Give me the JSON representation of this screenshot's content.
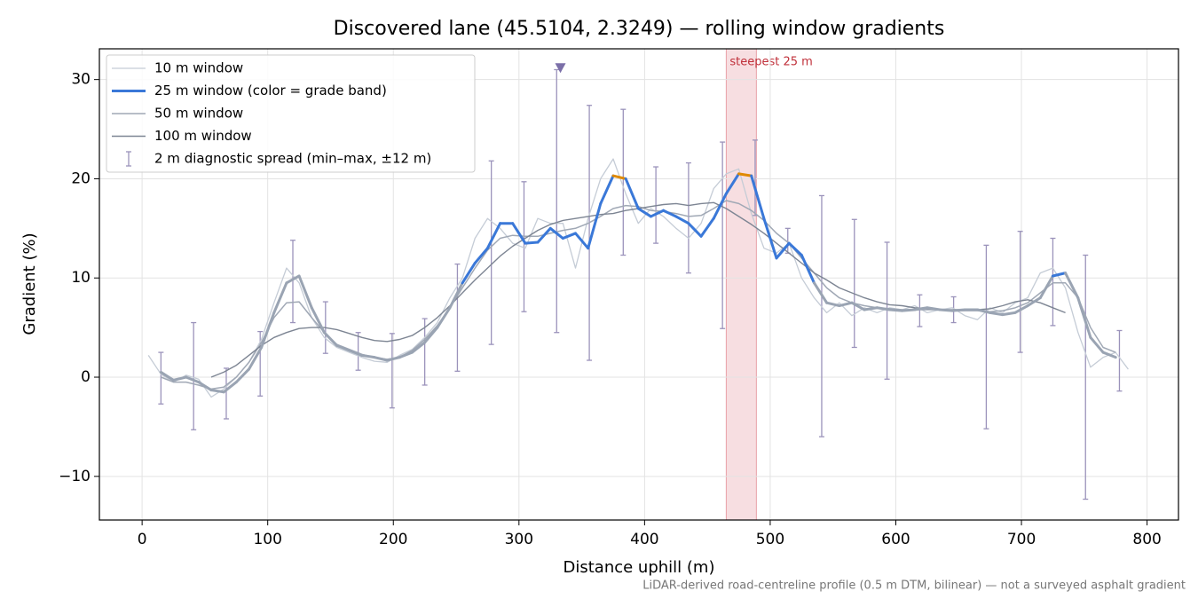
{
  "chart_data": {
    "type": "line",
    "title": "Discovered lane (45.5104, 2.3249) — rolling window gradients",
    "xlabel": "Distance uphill (m)",
    "ylabel": "Gradient (%)",
    "footnote": "LiDAR-derived road-centreline profile (0.5 m DTM, bilinear) — not a surveyed asphalt gradient",
    "xlim": [
      -34,
      825
    ],
    "ylim": [
      -14.4,
      33.1
    ],
    "xticks": [
      0,
      100,
      200,
      300,
      400,
      500,
      600,
      700,
      800
    ],
    "yticks": [
      {
        "value": -10,
        "label": "−10"
      },
      0,
      10,
      20,
      30
    ],
    "grid": true,
    "legend": "upper left",
    "x": [
      5,
      15,
      25,
      35,
      45,
      55,
      65,
      75,
      85,
      95,
      105,
      115,
      125,
      135,
      145,
      155,
      165,
      175,
      185,
      195,
      205,
      215,
      225,
      235,
      245,
      255,
      265,
      275,
      285,
      295,
      305,
      315,
      325,
      335,
      345,
      355,
      365,
      375,
      385,
      395,
      405,
      415,
      425,
      435,
      445,
      455,
      465,
      475,
      485,
      495,
      505,
      515,
      525,
      535,
      545,
      555,
      565,
      575,
      585,
      595,
      605,
      615,
      625,
      635,
      645,
      655,
      665,
      675,
      685,
      695,
      705,
      715,
      725,
      735,
      745,
      755,
      765,
      775,
      785
    ],
    "series": [
      {
        "name": "10 m window",
        "color": "#c5ccd6",
        "width": 1.3,
        "values": [
          2.2,
          0.3,
          -0.5,
          0.2,
          -0.2,
          -2,
          -1.2,
          0,
          1.5,
          3.8,
          7.5,
          11,
          9.5,
          6,
          4,
          3,
          2.5,
          2,
          1.6,
          1.5,
          2.2,
          2.8,
          4,
          5.5,
          8,
          10,
          14,
          16,
          15,
          13.5,
          13,
          16,
          15.5,
          15.5,
          11,
          16,
          20,
          22,
          18.5,
          15.5,
          17,
          16.2,
          15,
          14,
          15.5,
          19,
          20.5,
          21,
          16.5,
          13,
          12.5,
          13.5,
          10,
          8,
          6.5,
          7.5,
          6.2,
          7,
          6.5,
          7,
          6.8,
          7.2,
          6.5,
          6.8,
          7,
          6.2,
          5.8,
          7,
          6.5,
          7.5,
          8,
          10.5,
          11,
          9,
          4.5,
          1,
          2,
          2.5,
          0.8
        ]
      },
      {
        "name": "25 m window (color = grade band)",
        "color": "#9aa4b3",
        "width": 3,
        "grade_bands": [
          {
            "from": 10,
            "color": "#3a78d8"
          },
          {
            "from": 20,
            "color": "#e08a00"
          }
        ],
        "values": [
          null,
          0.5,
          -0.3,
          0,
          -0.5,
          -1.3,
          -1.5,
          -0.5,
          0.8,
          3,
          6.5,
          9.5,
          10.2,
          7,
          4.5,
          3.2,
          2.7,
          2.2,
          2,
          1.7,
          2,
          2.5,
          3.5,
          5,
          7,
          9.5,
          11.5,
          13,
          15.5,
          15.5,
          13.5,
          13.6,
          15,
          14,
          14.5,
          13,
          17.5,
          20.3,
          20,
          17,
          16.2,
          16.8,
          16.2,
          15.5,
          14.2,
          16,
          18.5,
          20.5,
          20.3,
          16,
          12,
          13.5,
          12.3,
          9.5,
          7.5,
          7.2,
          7.5,
          6.8,
          7,
          6.8,
          6.7,
          6.8,
          7,
          6.8,
          6.7,
          6.8,
          6.8,
          6.5,
          6.3,
          6.5,
          7.2,
          8,
          10.2,
          10.5,
          8,
          4,
          2.5,
          2,
          null
        ]
      },
      {
        "name": "50 m window",
        "color": "#a0a8b5",
        "width": 1.5,
        "values": [
          null,
          0,
          -0.5,
          -0.5,
          -0.8,
          -1.2,
          -1,
          0,
          1.5,
          3.5,
          6,
          7.5,
          7.6,
          6,
          4.5,
          3.3,
          2.8,
          2.3,
          2,
          1.8,
          2,
          2.7,
          3.8,
          5.2,
          7,
          9,
          11,
          12.8,
          14,
          14.3,
          14.2,
          14.2,
          14.5,
          14.8,
          15,
          15.5,
          16.2,
          17,
          17.3,
          17.2,
          16.8,
          16.7,
          16.5,
          16.2,
          16.3,
          17,
          17.8,
          17.5,
          16.8,
          15.8,
          14.5,
          13.5,
          12,
          10.5,
          9,
          8,
          7.5,
          7.2,
          7,
          6.9,
          6.8,
          6.8,
          6.8,
          6.8,
          6.7,
          6.7,
          6.7,
          6.6,
          6.7,
          7,
          7.5,
          8.5,
          9.5,
          9.5,
          8,
          5,
          3,
          2.5,
          null
        ]
      },
      {
        "name": "100 m window",
        "color": "#7d8593",
        "width": 1.4,
        "values": [
          null,
          null,
          null,
          null,
          null,
          0,
          0.5,
          1.2,
          2.2,
          3.2,
          4,
          4.5,
          4.9,
          5,
          5,
          4.8,
          4.4,
          4,
          3.7,
          3.6,
          3.8,
          4.2,
          5,
          6,
          7.2,
          8.5,
          9.8,
          11,
          12.2,
          13.2,
          14,
          14.8,
          15.4,
          15.8,
          16,
          16.2,
          16.4,
          16.5,
          16.8,
          17,
          17.2,
          17.4,
          17.5,
          17.3,
          17.5,
          17.6,
          17,
          16.2,
          15.4,
          14.5,
          13.5,
          12.5,
          11.5,
          10.5,
          9.8,
          9,
          8.5,
          8,
          7.6,
          7.3,
          7.2,
          7,
          6.9,
          6.8,
          6.8,
          6.8,
          6.8,
          6.9,
          7.2,
          7.6,
          7.8,
          7.5,
          7,
          6.5,
          null,
          null,
          null,
          null,
          null
        ]
      }
    ],
    "spread": {
      "name": "2 m diagnostic spread (min–max, ±12 m)",
      "color": "#9b93bb",
      "x": [
        15,
        41,
        67,
        94,
        120,
        146,
        172,
        199,
        225,
        251,
        278,
        304,
        330,
        356,
        383,
        409,
        435,
        462,
        488,
        514,
        541,
        567,
        593,
        619,
        646,
        672,
        699,
        725,
        751,
        778
      ],
      "low": [
        -2.7,
        -5.3,
        -4.2,
        -1.9,
        5.5,
        2.4,
        0.7,
        -3.1,
        -0.8,
        0.6,
        3.3,
        6.6,
        4.5,
        1.7,
        12.3,
        13.5,
        10.5,
        4.9,
        16.3,
        12.5,
        -6,
        3,
        -0.2,
        5.1,
        5.5,
        -5.2,
        2.5,
        5.2,
        -12.3,
        -1.4
      ],
      "high": [
        2.5,
        5.5,
        0.9,
        4.6,
        13.8,
        7.6,
        4.5,
        4.4,
        5.9,
        11.4,
        21.8,
        19.7,
        31,
        27.4,
        27,
        21.2,
        21.6,
        23.7,
        23.9,
        15,
        18.3,
        15.9,
        13.6,
        8.3,
        8.1,
        13.3,
        14.7,
        14,
        12.3,
        4.7
      ]
    },
    "peak_marker": {
      "x": 333,
      "y": 31.2,
      "color": "#7b6fa8"
    },
    "highlight": {
      "x": [
        465,
        489
      ],
      "label": "steepest 25 m",
      "color": "#e8a0a8"
    }
  }
}
